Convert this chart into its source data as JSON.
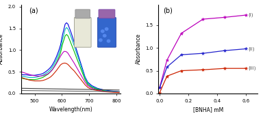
{
  "panel_a": {
    "title": "(a)",
    "xlabel": "Wavelength(nm)",
    "ylabel": "Absorbance",
    "xlim": [
      450,
      815
    ],
    "ylim": [
      0,
      2.05
    ],
    "yticks": [
      0.0,
      0.5,
      1.0,
      1.5,
      2.0
    ],
    "xticks": [
      500,
      600,
      700,
      800
    ],
    "curves": [
      {
        "color": "#0000dd",
        "x": [
          450,
          460,
          470,
          480,
          490,
          500,
          510,
          520,
          530,
          540,
          550,
          558,
          565,
          572,
          580,
          588,
          595,
          602,
          608,
          612,
          617,
          622,
          628,
          635,
          645,
          655,
          665,
          675,
          685,
          695,
          710,
          730,
          755,
          780,
          810
        ],
        "y": [
          0.44,
          0.43,
          0.43,
          0.42,
          0.42,
          0.42,
          0.43,
          0.44,
          0.46,
          0.5,
          0.55,
          0.6,
          0.66,
          0.74,
          0.85,
          0.98,
          1.12,
          1.35,
          1.5,
          1.6,
          1.63,
          1.6,
          1.5,
          1.38,
          1.18,
          0.98,
          0.78,
          0.58,
          0.38,
          0.26,
          0.18,
          0.12,
          0.08,
          0.06,
          0.04
        ]
      },
      {
        "color": "#00bbbb",
        "x": [
          450,
          460,
          470,
          480,
          490,
          500,
          510,
          520,
          530,
          540,
          550,
          558,
          565,
          572,
          580,
          588,
          595,
          602,
          608,
          612,
          617,
          622,
          628,
          635,
          645,
          655,
          665,
          675,
          685,
          695,
          710,
          730,
          755,
          780,
          810
        ],
        "y": [
          0.4,
          0.39,
          0.38,
          0.37,
          0.37,
          0.37,
          0.38,
          0.4,
          0.42,
          0.46,
          0.5,
          0.55,
          0.61,
          0.68,
          0.78,
          0.9,
          1.03,
          1.24,
          1.38,
          1.48,
          1.52,
          1.49,
          1.4,
          1.28,
          1.1,
          0.91,
          0.73,
          0.54,
          0.36,
          0.24,
          0.16,
          0.11,
          0.07,
          0.05,
          0.04
        ]
      },
      {
        "color": "#00bb00",
        "x": [
          450,
          460,
          470,
          480,
          490,
          500,
          510,
          520,
          530,
          540,
          550,
          558,
          565,
          572,
          580,
          588,
          595,
          602,
          608,
          612,
          617,
          622,
          628,
          635,
          645,
          655,
          665,
          675,
          685,
          695,
          710,
          730,
          755,
          780,
          810
        ],
        "y": [
          0.36,
          0.34,
          0.33,
          0.32,
          0.32,
          0.32,
          0.33,
          0.35,
          0.37,
          0.41,
          0.45,
          0.5,
          0.55,
          0.62,
          0.71,
          0.82,
          0.94,
          1.13,
          1.25,
          1.33,
          1.36,
          1.33,
          1.24,
          1.13,
          0.97,
          0.8,
          0.64,
          0.48,
          0.32,
          0.21,
          0.14,
          0.1,
          0.06,
          0.04,
          0.03
        ]
      },
      {
        "color": "#bb00bb",
        "x": [
          450,
          460,
          470,
          480,
          490,
          500,
          510,
          520,
          530,
          540,
          550,
          558,
          565,
          572,
          580,
          588,
          595,
          602,
          608,
          612,
          617,
          622,
          628,
          635,
          645,
          655,
          665,
          675,
          685,
          695,
          710,
          730,
          755,
          780,
          810
        ],
        "y": [
          0.5,
          0.48,
          0.46,
          0.44,
          0.42,
          0.41,
          0.4,
          0.4,
          0.41,
          0.43,
          0.46,
          0.5,
          0.55,
          0.61,
          0.69,
          0.78,
          0.86,
          0.93,
          0.97,
          0.97,
          0.96,
          0.93,
          0.87,
          0.8,
          0.7,
          0.59,
          0.48,
          0.37,
          0.26,
          0.18,
          0.12,
          0.08,
          0.05,
          0.04,
          0.03
        ]
      },
      {
        "color": "#cc2200",
        "x": [
          450,
          460,
          470,
          480,
          490,
          500,
          510,
          520,
          530,
          540,
          550,
          558,
          565,
          572,
          580,
          588,
          595,
          602,
          608,
          612,
          617,
          622,
          628,
          635,
          645,
          655,
          665,
          675,
          685,
          695,
          710,
          730,
          755,
          780,
          810
        ],
        "y": [
          0.37,
          0.35,
          0.33,
          0.31,
          0.3,
          0.29,
          0.29,
          0.29,
          0.3,
          0.32,
          0.35,
          0.38,
          0.42,
          0.47,
          0.53,
          0.6,
          0.66,
          0.69,
          0.7,
          0.7,
          0.69,
          0.67,
          0.63,
          0.58,
          0.52,
          0.44,
          0.36,
          0.28,
          0.2,
          0.14,
          0.09,
          0.07,
          0.04,
          0.03,
          0.02
        ]
      },
      {
        "color": "#444444",
        "x": [
          450,
          810
        ],
        "y": [
          0.12,
          0.08
        ]
      },
      {
        "color": "#666666",
        "x": [
          450,
          810
        ],
        "y": [
          0.07,
          0.04
        ]
      }
    ]
  },
  "panel_b": {
    "title": "(b)",
    "xlabel": "[BNHA] mM",
    "ylabel": "Absorbance",
    "xlim": [
      -0.01,
      0.68
    ],
    "ylim": [
      0,
      1.95
    ],
    "yticks": [
      0.0,
      0.5,
      1.0,
      1.5
    ],
    "xticks": [
      0.0,
      0.2,
      0.4,
      0.6
    ],
    "series": [
      {
        "label": "(i)",
        "color": "#bb00bb",
        "marker": "*",
        "x": [
          0.0,
          0.05,
          0.15,
          0.3,
          0.45,
          0.6
        ],
        "y": [
          0.14,
          0.73,
          1.32,
          1.63,
          1.67,
          1.72
        ]
      },
      {
        "label": "(ii)",
        "color": "#2222cc",
        "marker": "*",
        "x": [
          0.0,
          0.05,
          0.15,
          0.3,
          0.45,
          0.6
        ],
        "y": [
          0.13,
          0.58,
          0.85,
          0.88,
          0.94,
          0.98
        ]
      },
      {
        "label": "(iii)",
        "color": "#cc2200",
        "marker": "*",
        "x": [
          0.0,
          0.05,
          0.15,
          0.3,
          0.45,
          0.6
        ],
        "y": [
          0.02,
          0.38,
          0.5,
          0.52,
          0.55,
          0.55
        ]
      }
    ]
  },
  "inset": {
    "bg_color": "#cccccc",
    "vial1_color": "#ddddcc",
    "vial2_color": "#4477cc",
    "cap1_color": "#888877",
    "cap2_color": "#9977aa"
  }
}
